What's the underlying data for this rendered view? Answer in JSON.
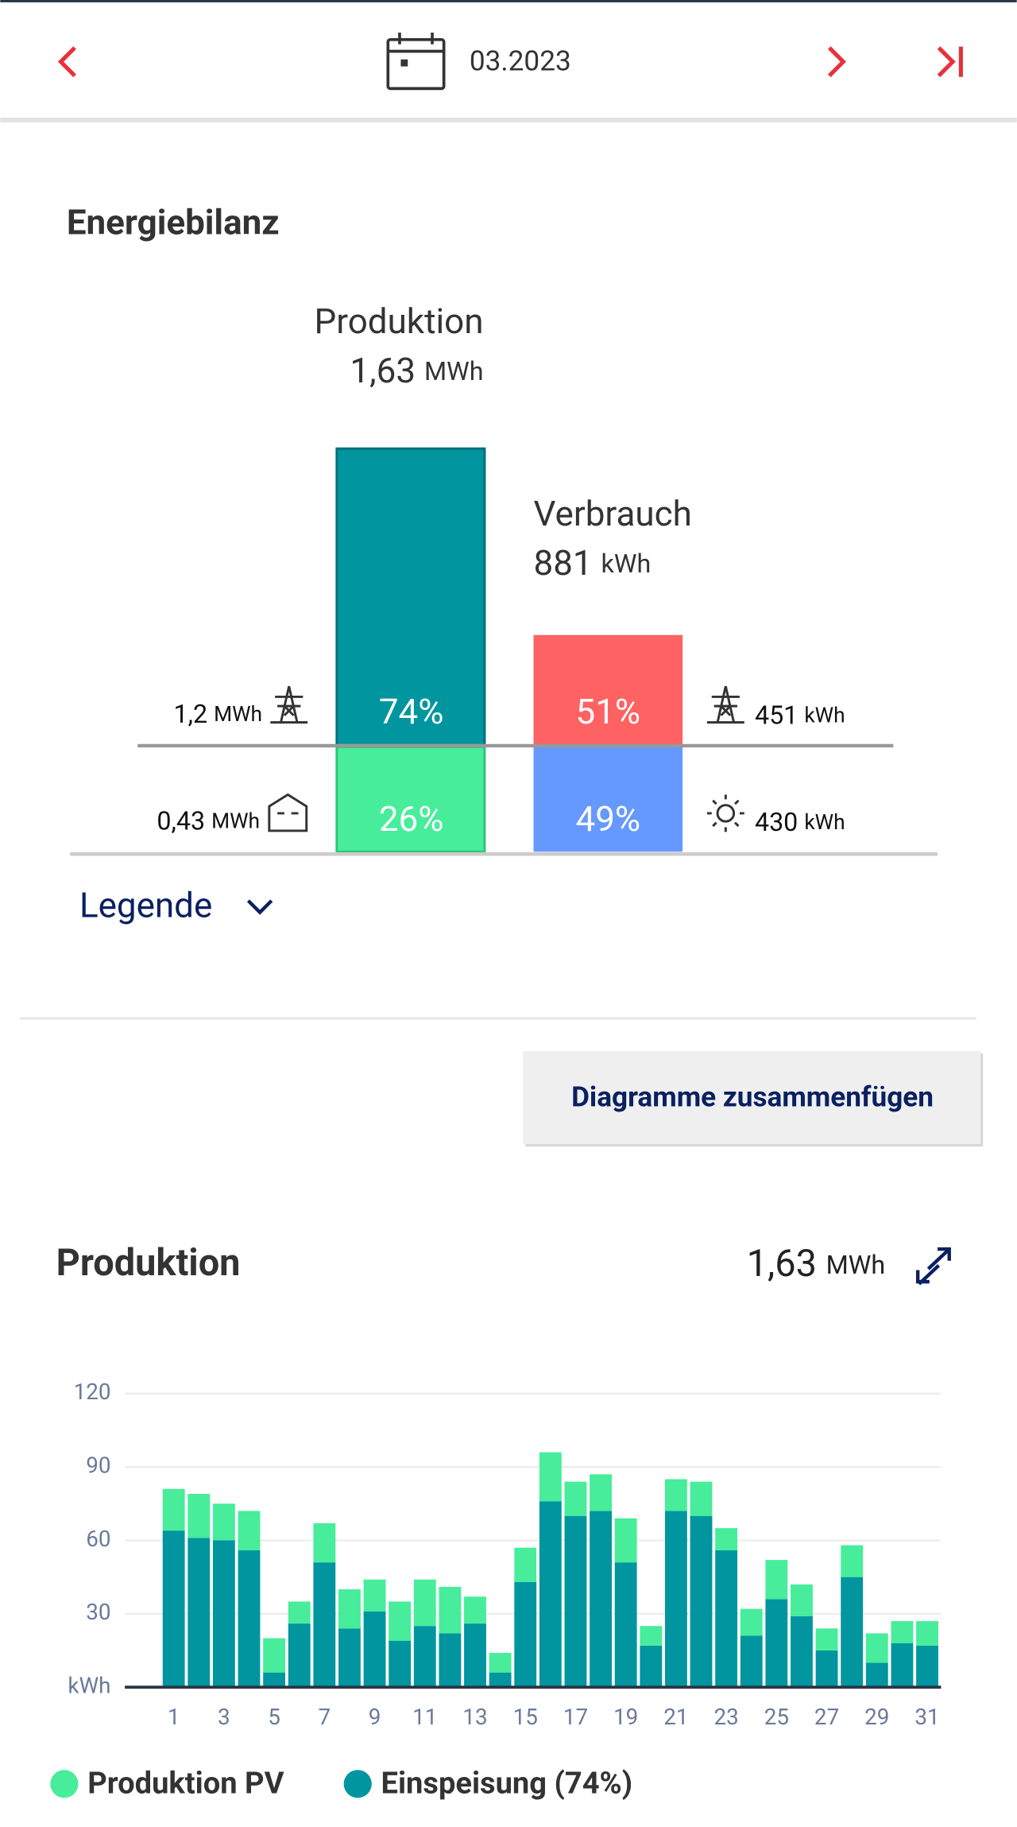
{
  "header": {
    "period": "03.2023"
  },
  "balance": {
    "title": "Energiebilanz",
    "production": {
      "label": "Produktion",
      "value": "1,63",
      "unit": "MWh",
      "feed_in": {
        "percent": "74%",
        "value": "1,2",
        "unit": "MWh"
      },
      "self_use": {
        "percent": "26%",
        "value": "0,43",
        "unit": "MWh"
      }
    },
    "consumption": {
      "label": "Verbrauch",
      "value": "881",
      "unit": "kWh",
      "grid": {
        "percent": "51%",
        "value": "451",
        "unit": "kWh"
      },
      "solar": {
        "percent": "49%",
        "value": "430",
        "unit": "kWh"
      }
    },
    "legend_toggle": "Legende"
  },
  "merge_button": "Diagramme zusammenfügen",
  "chart_data": {
    "type": "bar",
    "stacked": true,
    "title": "Produktion",
    "total": "1,63",
    "total_unit": "MWh",
    "categories": [
      "1",
      null,
      "3",
      null,
      "5",
      null,
      "7",
      null,
      "9",
      null,
      "11",
      null,
      "13",
      null,
      "15",
      null,
      "17",
      null,
      "19",
      null,
      "21",
      null,
      "23",
      null,
      "25",
      null,
      "27",
      null,
      "29",
      null,
      "31"
    ],
    "series": [
      {
        "name": "Produktion PV",
        "color": "#47ed9a",
        "values": [
          17,
          18,
          15,
          16,
          14,
          9,
          16,
          16,
          13,
          16,
          19,
          19,
          11,
          8,
          14,
          20,
          14,
          15,
          18,
          8,
          13,
          14,
          9,
          11,
          16,
          13,
          9,
          13,
          12,
          9,
          10
        ]
      },
      {
        "name": "Einspeisung (74%)",
        "color": "#00959f",
        "values": [
          64,
          61,
          60,
          56,
          6,
          26,
          51,
          24,
          31,
          19,
          25,
          22,
          26,
          6,
          43,
          76,
          70,
          72,
          51,
          17,
          72,
          70,
          56,
          21,
          36,
          29,
          15,
          45,
          10,
          18,
          17
        ]
      }
    ],
    "ylim": [
      0,
      120
    ],
    "yticks": [
      {
        "value": 0,
        "label": "kWh"
      },
      30,
      60,
      90,
      120
    ],
    "grid": true
  }
}
